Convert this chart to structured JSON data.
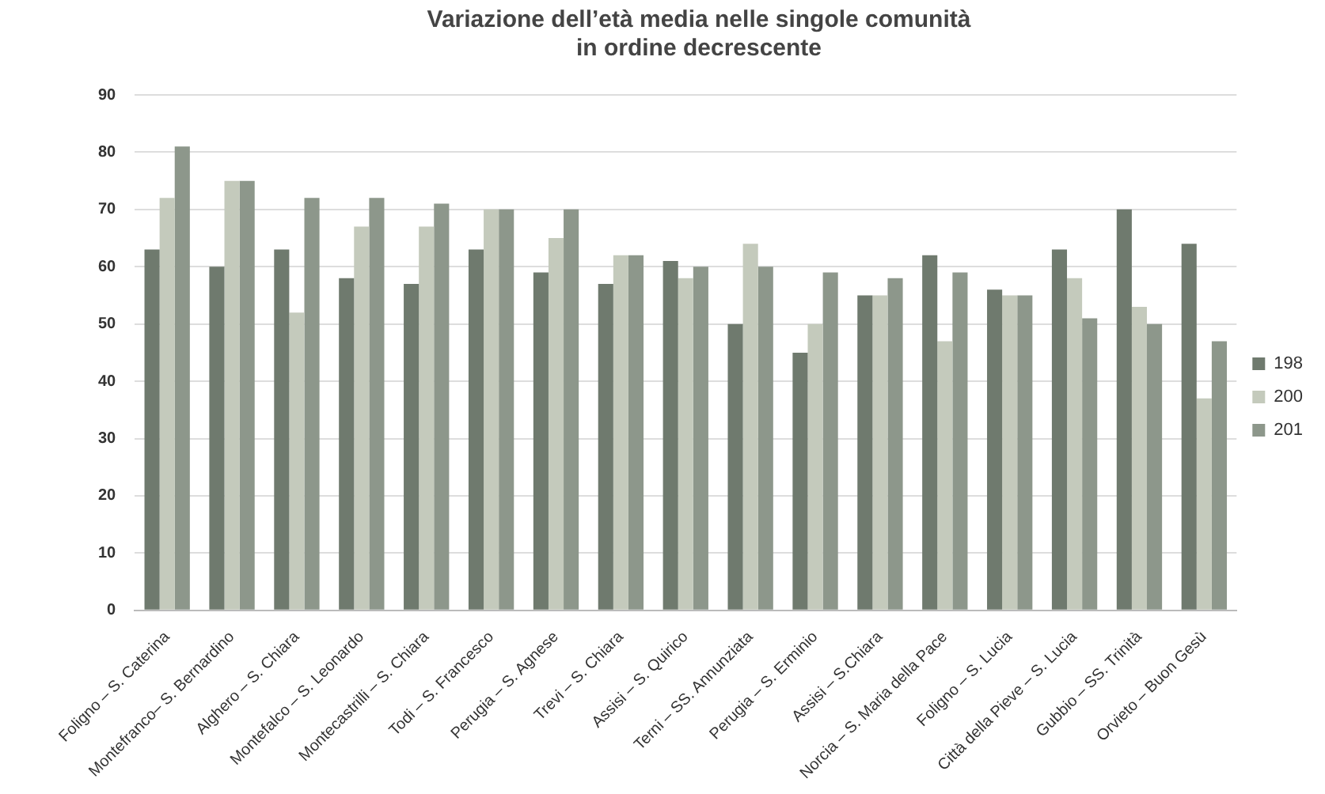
{
  "chart_data": {
    "type": "bar",
    "title": "Variazione dell’età media nelle singole comunità\nin ordine decrescente",
    "categories": [
      "Foligno – S. Caterina",
      "Montefranco– S. Bernardino",
      "Alghero – S. Chiara",
      "Montefalco – S. Leonardo",
      "Montecastrilli – S. Chiara",
      "Todi – S. Francesco",
      "Perugia – S. Agnese",
      "Trevi – S. Chiara",
      "Assisi – S. Quirico",
      "Terni – SS. Annunziata",
      "Perugia – S. Erminio",
      "Assisi – S.Chiara",
      "Norcia – S. Maria della Pace",
      "Foligno – S. Lucia",
      "Città della Pieve – S. Lucia",
      "Gubbio – SS. Trinità",
      "Orvieto – Buon Gesù"
    ],
    "series": [
      {
        "name": "198",
        "color": "#6f7a6e",
        "values": [
          63,
          60,
          63,
          58,
          57,
          63,
          59,
          57,
          61,
          50,
          45,
          55,
          62,
          56,
          63,
          70,
          64
        ]
      },
      {
        "name": "200",
        "color": "#c4cabc",
        "values": [
          72,
          75,
          52,
          67,
          67,
          70,
          65,
          62,
          58,
          64,
          50,
          55,
          47,
          55,
          58,
          53,
          37
        ]
      },
      {
        "name": "201",
        "color": "#8d978b",
        "values": [
          81,
          75,
          72,
          72,
          71,
          70,
          70,
          62,
          60,
          60,
          59,
          58,
          59,
          55,
          51,
          50,
          47
        ]
      }
    ],
    "ylim": [
      0,
      90
    ],
    "yticks": [
      0,
      10,
      20,
      30,
      40,
      50,
      60,
      70,
      80,
      90
    ],
    "grid": "y",
    "legend": "right"
  }
}
